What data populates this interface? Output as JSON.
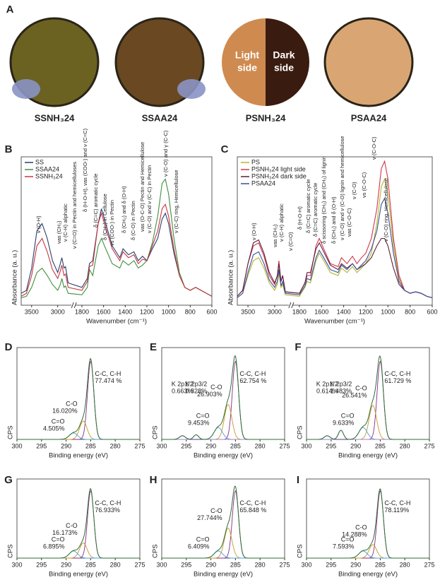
{
  "panel_labels": [
    "A",
    "B",
    "C",
    "D",
    "E",
    "F",
    "G",
    "H",
    "I"
  ],
  "photos": [
    {
      "label": "SSNH₃24",
      "color": "#6b6221"
    },
    {
      "label": "SSAA24",
      "color": "#6a4822"
    },
    {
      "label": "PSNH₃24",
      "colors": [
        "#cf8a50",
        "#3a1b10"
      ],
      "halves": [
        [
          "Light",
          "side"
        ],
        [
          "Dark",
          "side"
        ]
      ]
    },
    {
      "label": "PSAA24",
      "color": "#d9a673"
    }
  ],
  "chart_data": [
    {
      "type": "line",
      "ylabel": "Absorbance (a. u.)",
      "xlabel": "Wavenumber (cm⁻¹)",
      "xlim": [
        3700,
        600
      ],
      "xbreak": [
        2750,
        1850
      ],
      "ylim": [
        0,
        1
      ],
      "xticks": [
        3500,
        3000,
        1800,
        1600,
        1400,
        1200,
        1000,
        800,
        600
      ],
      "legend": "upper left",
      "x": [
        3700,
        3600,
        3500,
        3400,
        3300,
        3200,
        3100,
        3000,
        2950,
        2920,
        2880,
        2850,
        2800,
        1800,
        1750,
        1730,
        1700,
        1650,
        1620,
        1580,
        1520,
        1450,
        1420,
        1370,
        1320,
        1280,
        1240,
        1200,
        1150,
        1100,
        1060,
        1030,
        1000,
        950,
        900,
        850,
        800,
        750,
        700,
        650,
        600
      ],
      "series": [
        {
          "name": "SS",
          "color": "#2b3f6e",
          "values": [
            0.08,
            0.1,
            0.25,
            0.5,
            0.55,
            0.45,
            0.3,
            0.22,
            0.28,
            0.32,
            0.25,
            0.26,
            0.15,
            0.12,
            0.18,
            0.28,
            0.3,
            0.55,
            0.65,
            0.55,
            0.4,
            0.32,
            0.38,
            0.34,
            0.36,
            0.3,
            0.33,
            0.3,
            0.38,
            0.45,
            0.58,
            0.62,
            0.55,
            0.35,
            0.2,
            0.12,
            0.1,
            0.12,
            0.1,
            0.08,
            0.06
          ]
        },
        {
          "name": "SSAA24",
          "color": "#3f8f3f",
          "values": [
            0.05,
            0.06,
            0.12,
            0.22,
            0.25,
            0.2,
            0.14,
            0.1,
            0.14,
            0.18,
            0.12,
            0.13,
            0.08,
            0.07,
            0.12,
            0.24,
            0.2,
            0.4,
            0.45,
            0.38,
            0.28,
            0.25,
            0.3,
            0.27,
            0.3,
            0.25,
            0.27,
            0.3,
            0.42,
            0.6,
            0.82,
            0.85,
            0.75,
            0.45,
            0.22,
            0.12,
            0.1,
            0.12,
            0.1,
            0.08,
            0.06
          ]
        },
        {
          "name": "SSNH₃24",
          "color": "#c8363f",
          "values": [
            0.06,
            0.08,
            0.2,
            0.4,
            0.45,
            0.36,
            0.24,
            0.18,
            0.23,
            0.27,
            0.2,
            0.21,
            0.12,
            0.1,
            0.16,
            0.26,
            0.27,
            0.55,
            0.62,
            0.52,
            0.38,
            0.3,
            0.36,
            0.32,
            0.34,
            0.28,
            0.31,
            0.3,
            0.4,
            0.5,
            0.65,
            0.68,
            0.6,
            0.38,
            0.2,
            0.12,
            0.1,
            0.12,
            0.1,
            0.08,
            0.06
          ]
        }
      ],
      "annotations": [
        "ν (O-H)",
        "νas (CH₂)",
        "ν (C-H) aliphatic",
        "ν (C=O) in Pectin and hemicelluloses",
        "δ (H-O-H), νas (COO-) and ν (C=C)",
        "δ (C=C) aromatic cycle",
        "δ (CH₂) in Cellulose",
        "νs (COO-) in Pectin",
        "δ (CH₂) and δ (O-H)",
        "δ (C-O) in Pectin",
        "νas (O-C-O) Pectin and Hemicellulose",
        "ν (C-O) and ν (C-C) in Pectin",
        "ν (C-O) and γ (C-C)",
        "ν (C-C) ring, Hemicellulose"
      ]
    },
    {
      "type": "line",
      "ylabel": "Absorbance (a. u.)",
      "xlabel": "Wavenumber (cm⁻¹)",
      "xlim": [
        3700,
        600
      ],
      "xbreak": [
        2750,
        1850
      ],
      "ylim": [
        0,
        1
      ],
      "xticks": [
        3500,
        3000,
        1800,
        1600,
        1400,
        1200,
        1000,
        800,
        600
      ],
      "legend": "upper left",
      "x": [
        3700,
        3600,
        3500,
        3400,
        3300,
        3200,
        3100,
        3000,
        2950,
        2920,
        2880,
        2850,
        2800,
        1800,
        1750,
        1730,
        1700,
        1650,
        1620,
        1580,
        1520,
        1450,
        1420,
        1370,
        1320,
        1280,
        1240,
        1200,
        1150,
        1100,
        1060,
        1030,
        1000,
        950,
        900,
        850,
        800,
        750,
        700,
        650,
        600
      ],
      "series": [
        {
          "name": "PS",
          "color": "#b5b52e",
          "values": [
            0.05,
            0.08,
            0.2,
            0.3,
            0.32,
            0.25,
            0.15,
            0.1,
            0.14,
            0.22,
            0.12,
            0.14,
            0.07,
            0.06,
            0.12,
            0.16,
            0.15,
            0.3,
            0.35,
            0.3,
            0.22,
            0.2,
            0.25,
            0.22,
            0.26,
            0.22,
            0.25,
            0.28,
            0.35,
            0.55,
            0.8,
            0.85,
            0.75,
            0.4,
            0.18,
            0.1,
            0.08,
            0.09,
            0.08,
            0.06,
            0.05
          ]
        },
        {
          "name": "PSNH₃24 light side",
          "color": "#d0364a",
          "values": [
            0.06,
            0.1,
            0.28,
            0.4,
            0.42,
            0.33,
            0.2,
            0.14,
            0.2,
            0.3,
            0.16,
            0.2,
            0.09,
            0.08,
            0.15,
            0.2,
            0.2,
            0.4,
            0.45,
            0.38,
            0.28,
            0.26,
            0.32,
            0.28,
            0.33,
            0.28,
            0.32,
            0.35,
            0.45,
            0.65,
            0.92,
            0.97,
            0.85,
            0.45,
            0.2,
            0.1,
            0.08,
            0.09,
            0.08,
            0.06,
            0.05
          ]
        },
        {
          "name": "PSNH₃24 dark side",
          "color": "#5a1f3f",
          "values": [
            0.06,
            0.1,
            0.28,
            0.42,
            0.44,
            0.35,
            0.22,
            0.15,
            0.2,
            0.28,
            0.16,
            0.2,
            0.09,
            0.08,
            0.15,
            0.22,
            0.22,
            0.38,
            0.42,
            0.36,
            0.27,
            0.24,
            0.28,
            0.25,
            0.28,
            0.24,
            0.26,
            0.28,
            0.32,
            0.4,
            0.45,
            0.45,
            0.4,
            0.25,
            0.14,
            0.1,
            0.08,
            0.09,
            0.08,
            0.06,
            0.05
          ]
        },
        {
          "name": "PSAA24",
          "color": "#3b4f9a",
          "values": [
            0.05,
            0.08,
            0.22,
            0.34,
            0.36,
            0.28,
            0.17,
            0.12,
            0.16,
            0.24,
            0.13,
            0.16,
            0.08,
            0.07,
            0.13,
            0.18,
            0.17,
            0.32,
            0.37,
            0.32,
            0.24,
            0.22,
            0.27,
            0.24,
            0.28,
            0.24,
            0.27,
            0.3,
            0.38,
            0.5,
            0.68,
            0.72,
            0.62,
            0.35,
            0.16,
            0.1,
            0.08,
            0.09,
            0.08,
            0.06,
            0.05
          ]
        }
      ],
      "annotations": [
        "ν (O-H)",
        "νas (CH₂)",
        "ν (C-H) aliphatic",
        "ν (C=O)",
        "δ (H-O-H)",
        "δ (C=C) aromatic cycle",
        "δ (C=C) aromatic cycle",
        "δ scissoring (CH₂) and (CH₃) of lignin",
        "δ (CH₂) and δ (O-H)",
        "ν (C-O) and ν (C-O) lignin and hemicellulose",
        "νas (C-O-C)",
        "ν (C-O)",
        "νs (C-O-C)",
        "ν (C-O-C)",
        "ν (C-O) ring, Hemicellulose"
      ]
    },
    {
      "type": "peaks",
      "xlabel": "Binding energy (eV)",
      "ylabel": "CPS",
      "xlim": [
        300,
        275
      ],
      "ylim": [
        0,
        1
      ],
      "xticks": [
        300,
        295,
        290,
        285,
        280,
        275
      ],
      "envelope_color": "#2f6e34",
      "series": [
        {
          "name": "C-C, C-H",
          "color": "#8b2a86",
          "center": 285,
          "height": 0.85,
          "fwhm": 1.5,
          "value": 77.474,
          "value_label": "77.474 %"
        },
        {
          "name": "C-O",
          "color": "#c49a2a",
          "center": 286.5,
          "height": 0.2,
          "fwhm": 1.8,
          "value": 16.02,
          "value_label": "16.020%"
        },
        {
          "name": "C=O",
          "color": "#4f9fd6",
          "center": 288.5,
          "height": 0.07,
          "fwhm": 2,
          "value": 4.505,
          "value_label": "4.505%"
        }
      ]
    },
    {
      "type": "peaks",
      "xlabel": "Binding energy (eV)",
      "ylabel": "CPS",
      "xlim": [
        300,
        275
      ],
      "ylim": [
        0,
        1
      ],
      "xticks": [
        300,
        295,
        290,
        285,
        280,
        275
      ],
      "envelope_color": "#2f6e34",
      "series": [
        {
          "name": "C-C, C-H",
          "color": "#8b2a86",
          "center": 285,
          "height": 0.85,
          "fwhm": 1.5,
          "value": 62.754,
          "value_label": "62.754 %"
        },
        {
          "name": "C-O",
          "color": "#c49a2a",
          "center": 286.5,
          "height": 0.38,
          "fwhm": 1.8,
          "value": 26.903,
          "value_label": "26.903%"
        },
        {
          "name": "C=O",
          "color": "#4f9fd6",
          "center": 288.5,
          "height": 0.13,
          "fwhm": 2,
          "value": 9.453,
          "value_label": "9.453%"
        },
        {
          "name": "K 2p1/2",
          "color": "#5a3a7a",
          "center": 295.8,
          "height": 0.04,
          "fwhm": 1.4,
          "value": 0.663,
          "value_label": "0.663%"
        },
        {
          "name": "K 2p3/2",
          "color": "#a383c4",
          "center": 293,
          "height": 0.05,
          "fwhm": 1.2,
          "value": 0.828,
          "value_label": "0.828%"
        }
      ]
    },
    {
      "type": "peaks",
      "xlabel": "Binding energy (eV)",
      "ylabel": "CPS",
      "xlim": [
        300,
        275
      ],
      "ylim": [
        0,
        1
      ],
      "xticks": [
        300,
        295,
        290,
        285,
        280,
        275
      ],
      "envelope_color": "#2f6e34",
      "series": [
        {
          "name": "C-C, C-H",
          "color": "#8b2a86",
          "center": 285,
          "height": 0.85,
          "fwhm": 1.5,
          "value": 61.729,
          "value_label": "61.729 %"
        },
        {
          "name": "C-O",
          "color": "#c49a2a",
          "center": 286.5,
          "height": 0.37,
          "fwhm": 1.8,
          "value": 26.541,
          "value_label": "26.541%"
        },
        {
          "name": "C=O",
          "color": "#4f9fd6",
          "center": 288.5,
          "height": 0.13,
          "fwhm": 2,
          "value": 9.633,
          "value_label": "9.633%"
        },
        {
          "name": "K 2p1/2",
          "color": "#5a3a7a",
          "center": 295.8,
          "height": 0.04,
          "fwhm": 1.4,
          "value": 0.614,
          "value_label": "0.614%"
        },
        {
          "name": "K 2p3/2",
          "color": "#a383c4",
          "center": 293,
          "height": 0.1,
          "fwhm": 1.2,
          "value": 1.483,
          "value_label": "1.483%"
        }
      ]
    },
    {
      "type": "peaks",
      "xlabel": "Binding energy (eV)",
      "ylabel": "CPS",
      "xlim": [
        300,
        275
      ],
      "ylim": [
        0,
        1
      ],
      "xticks": [
        300,
        295,
        290,
        285,
        280,
        275
      ],
      "envelope_color": "#2f6e34",
      "series": [
        {
          "name": "C-C, C-H",
          "color": "#8b2a86",
          "center": 285,
          "height": 0.85,
          "fwhm": 1.5,
          "value": 76.933,
          "value_label": "76.933%"
        },
        {
          "name": "C-O",
          "color": "#c49a2a",
          "center": 286.5,
          "height": 0.19,
          "fwhm": 1.8,
          "value": 16.173,
          "value_label": "16.173%"
        },
        {
          "name": "C=O",
          "color": "#4f9fd6",
          "center": 288.5,
          "height": 0.09,
          "fwhm": 2,
          "value": 6.895,
          "value_label": "6.895%"
        }
      ]
    },
    {
      "type": "peaks",
      "xlabel": "Binding energy (eV)",
      "ylabel": "CPS",
      "xlim": [
        300,
        275
      ],
      "ylim": [
        0,
        1
      ],
      "xticks": [
        300,
        295,
        290,
        285,
        280,
        275
      ],
      "envelope_color": "#2f6e34",
      "series": [
        {
          "name": "C-C, C-H",
          "color": "#8b2a86",
          "center": 285,
          "height": 0.85,
          "fwhm": 1.5,
          "value": 65.848,
          "value_label": "65.848 %"
        },
        {
          "name": "C-O",
          "color": "#c49a2a",
          "center": 286.5,
          "height": 0.38,
          "fwhm": 1.8,
          "value": 27.744,
          "value_label": "27.744%"
        },
        {
          "name": "C=O",
          "color": "#4f9fd6",
          "center": 288.5,
          "height": 0.09,
          "fwhm": 2,
          "value": 6.409,
          "value_label": "6.409%"
        }
      ]
    },
    {
      "type": "peaks",
      "xlabel": "Binding energy (eV)",
      "ylabel": "CPS",
      "xlim": [
        300,
        275
      ],
      "ylim": [
        0,
        1
      ],
      "xticks": [
        300,
        295,
        290,
        285,
        280,
        275
      ],
      "envelope_color": "#2f6e34",
      "series": [
        {
          "name": "C-C, C-H",
          "color": "#8b2a86",
          "center": 285,
          "height": 0.85,
          "fwhm": 1.5,
          "value": 78.119,
          "value_label": "78.119%"
        },
        {
          "name": "C-O",
          "color": "#c49a2a",
          "center": 286.5,
          "height": 0.17,
          "fwhm": 1.8,
          "value": 14.288,
          "value_label": "14.288%"
        },
        {
          "name": "C=O",
          "color": "#4f9fd6",
          "center": 288.5,
          "height": 0.09,
          "fwhm": 2,
          "value": 7.593,
          "value_label": "7.593%"
        }
      ]
    }
  ]
}
